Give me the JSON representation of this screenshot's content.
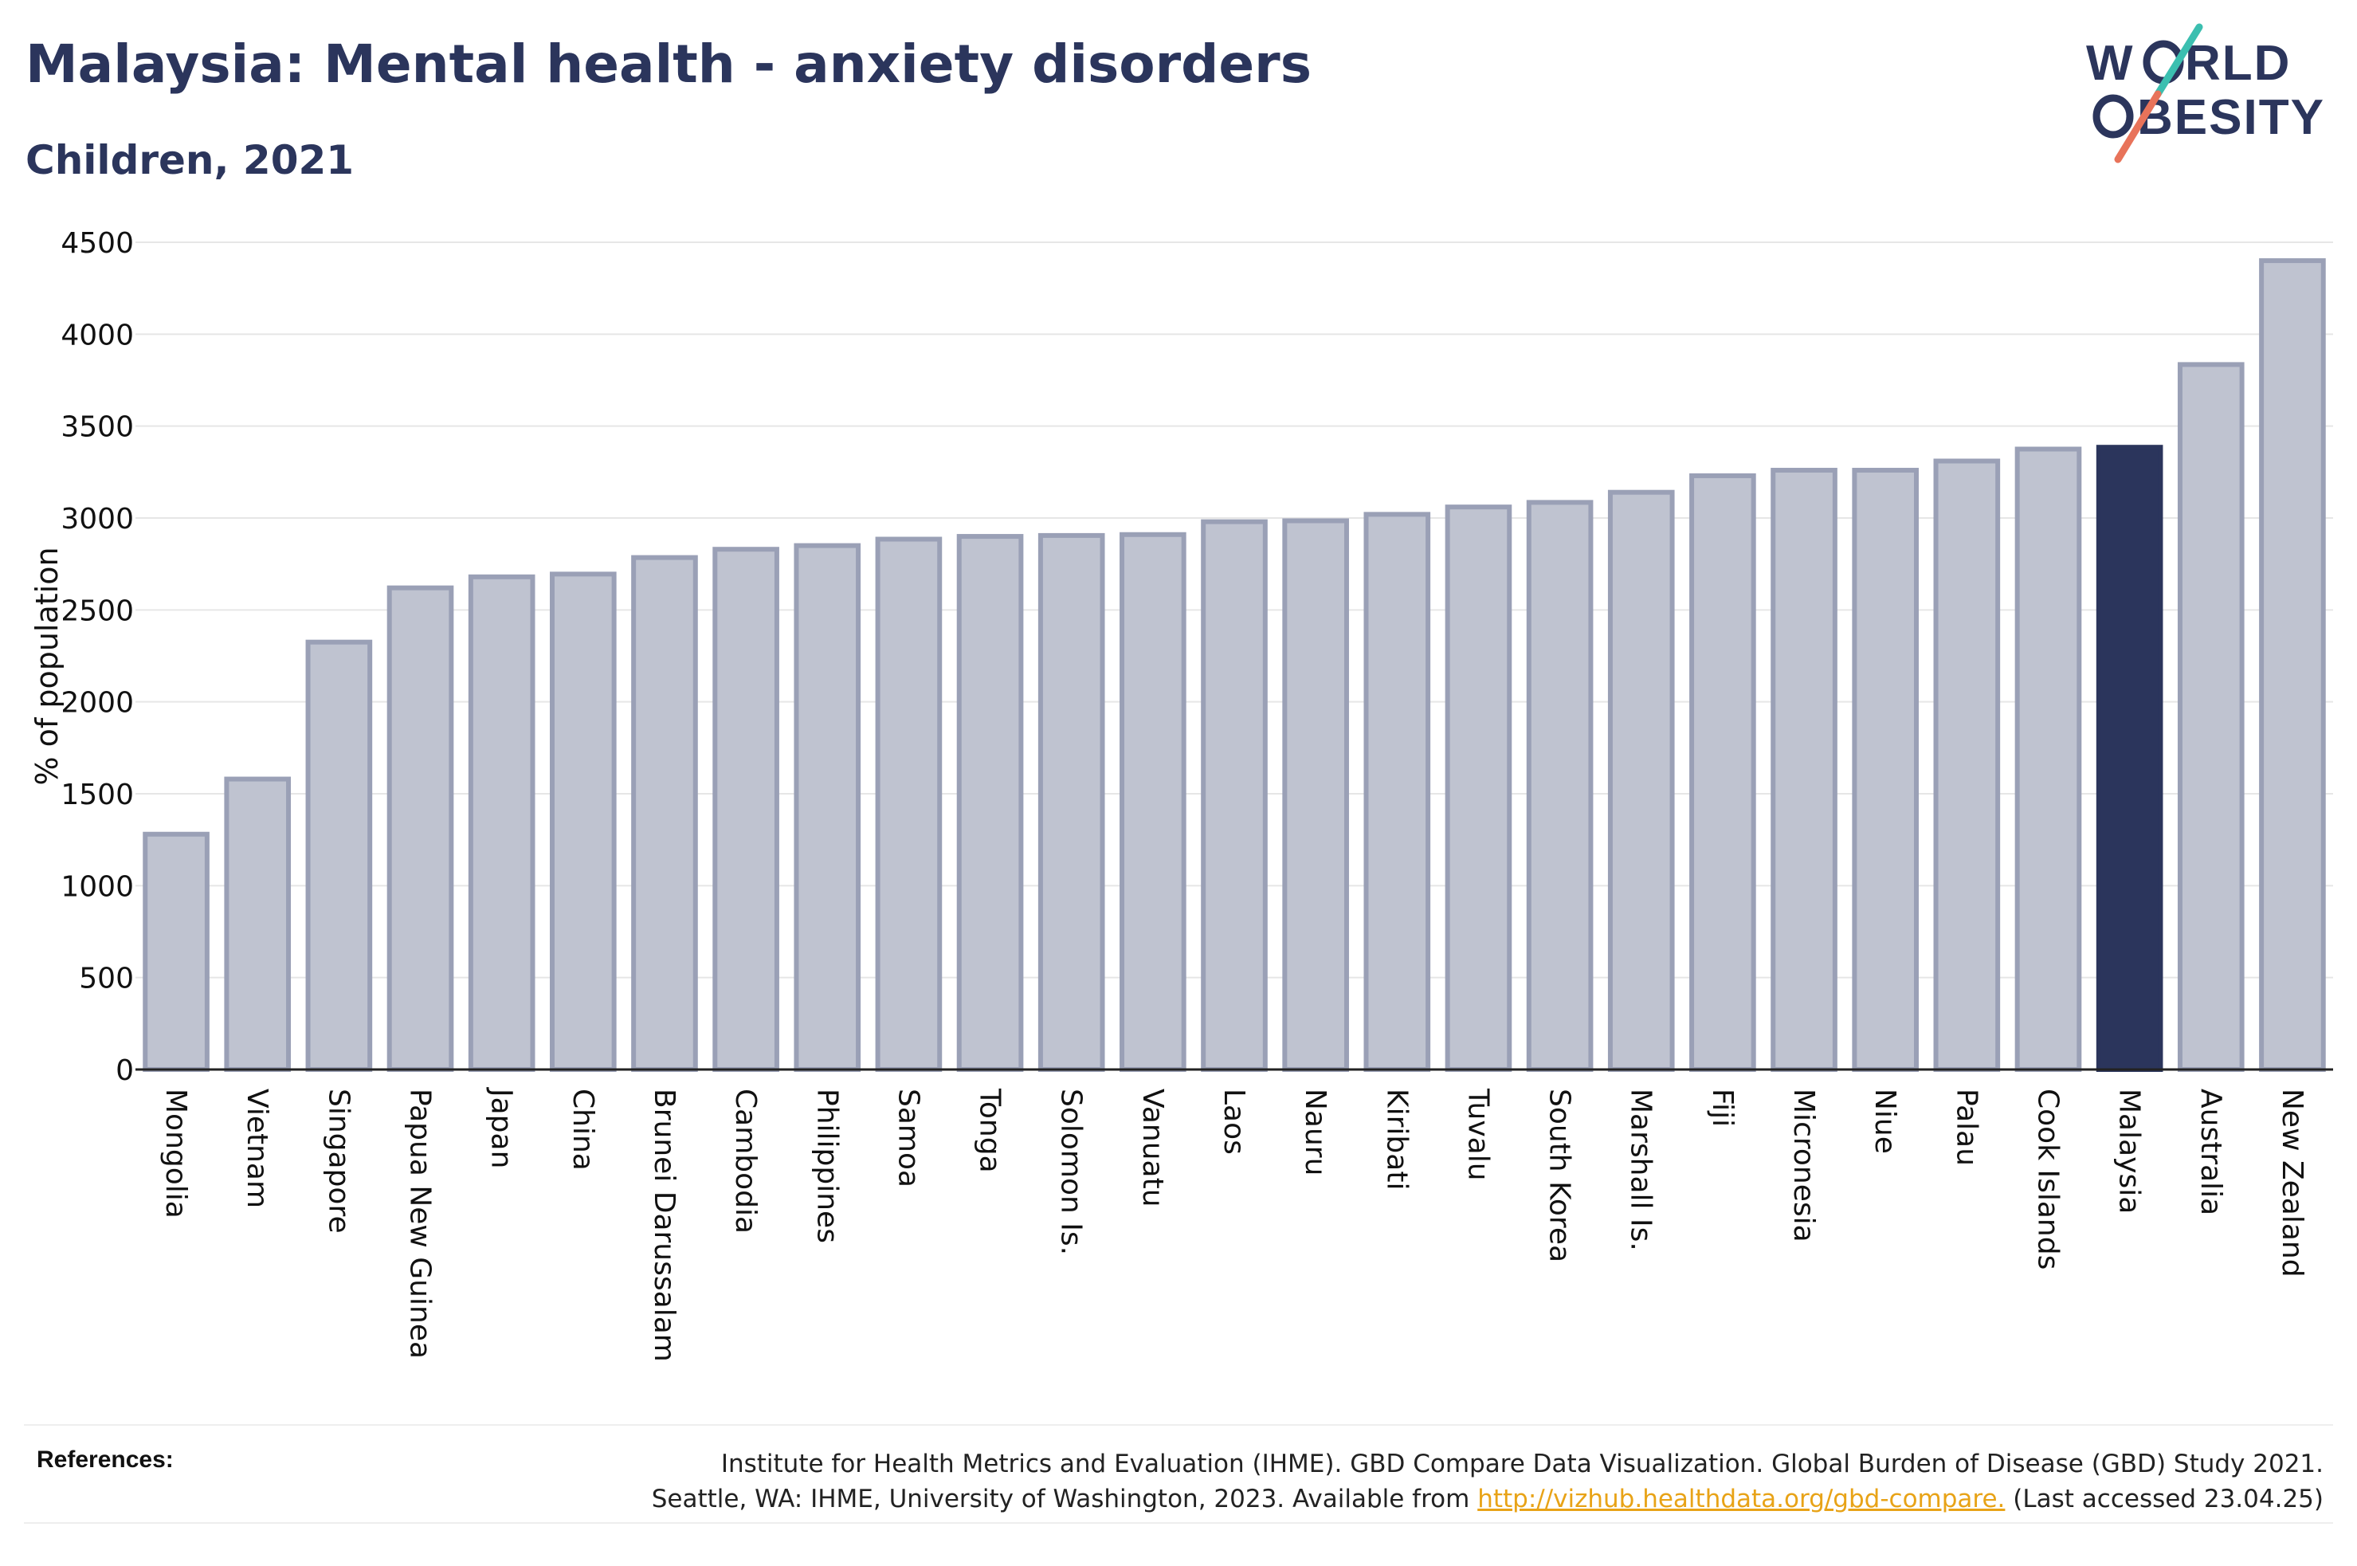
{
  "header": {
    "title": "Malaysia: Mental health - anxiety disorders",
    "subtitle": "Children, 2021"
  },
  "logo": {
    "line1": "W RLD",
    "line2": "BESITY",
    "text": "WORLD OBESITY"
  },
  "colors": {
    "bar_default": "#bfc3d0",
    "bar_border": "#9aa0b6",
    "bar_highlight": "#2b355c",
    "text": "#2b355c",
    "link": "#e8a317",
    "logo_teal": "#3bbfb0",
    "logo_coral": "#e8735a"
  },
  "chart_data": {
    "type": "bar",
    "ylabel": "% of population",
    "xlabel": "",
    "ylim": [
      0,
      4500
    ],
    "yticks": [
      0,
      500,
      1000,
      1500,
      2000,
      2500,
      3000,
      3500,
      4000,
      4500
    ],
    "grid": true,
    "highlight": "Malaysia",
    "categories": [
      "Mongolia",
      "Vietnam",
      "Singapore",
      "Papua New Guinea",
      "Japan",
      "China",
      "Brunei Darussalam",
      "Cambodia",
      "Philippines",
      "Samoa",
      "Tonga",
      "Solomon Is.",
      "Vanuatu",
      "Laos",
      "Nauru",
      "Kiribati",
      "Tuvalu",
      "South Korea",
      "Marshall Is.",
      "Fiji",
      "Micronesia",
      "Niue",
      "Palau",
      "Cook Islands",
      "Malaysia",
      "Australia",
      "New Zealand"
    ],
    "values": [
      1280,
      1580,
      2325,
      2620,
      2680,
      2695,
      2785,
      2830,
      2850,
      2885,
      2900,
      2905,
      2910,
      2980,
      2985,
      3020,
      3060,
      3085,
      3140,
      3230,
      3260,
      3260,
      3310,
      3375,
      3385,
      3835,
      4400
    ]
  },
  "references": {
    "label": "References:",
    "line1": "Institute for Health Metrics and Evaluation (IHME). GBD Compare Data Visualization. Global Burden of Disease (GBD) Study 2021.",
    "line2_pre": "Seattle, WA: IHME, University of Washington, 2023. Available from ",
    "link": "http://vizhub.healthdata.org/gbd-compare.",
    "line2_post": " (Last accessed 23.04.25)"
  }
}
